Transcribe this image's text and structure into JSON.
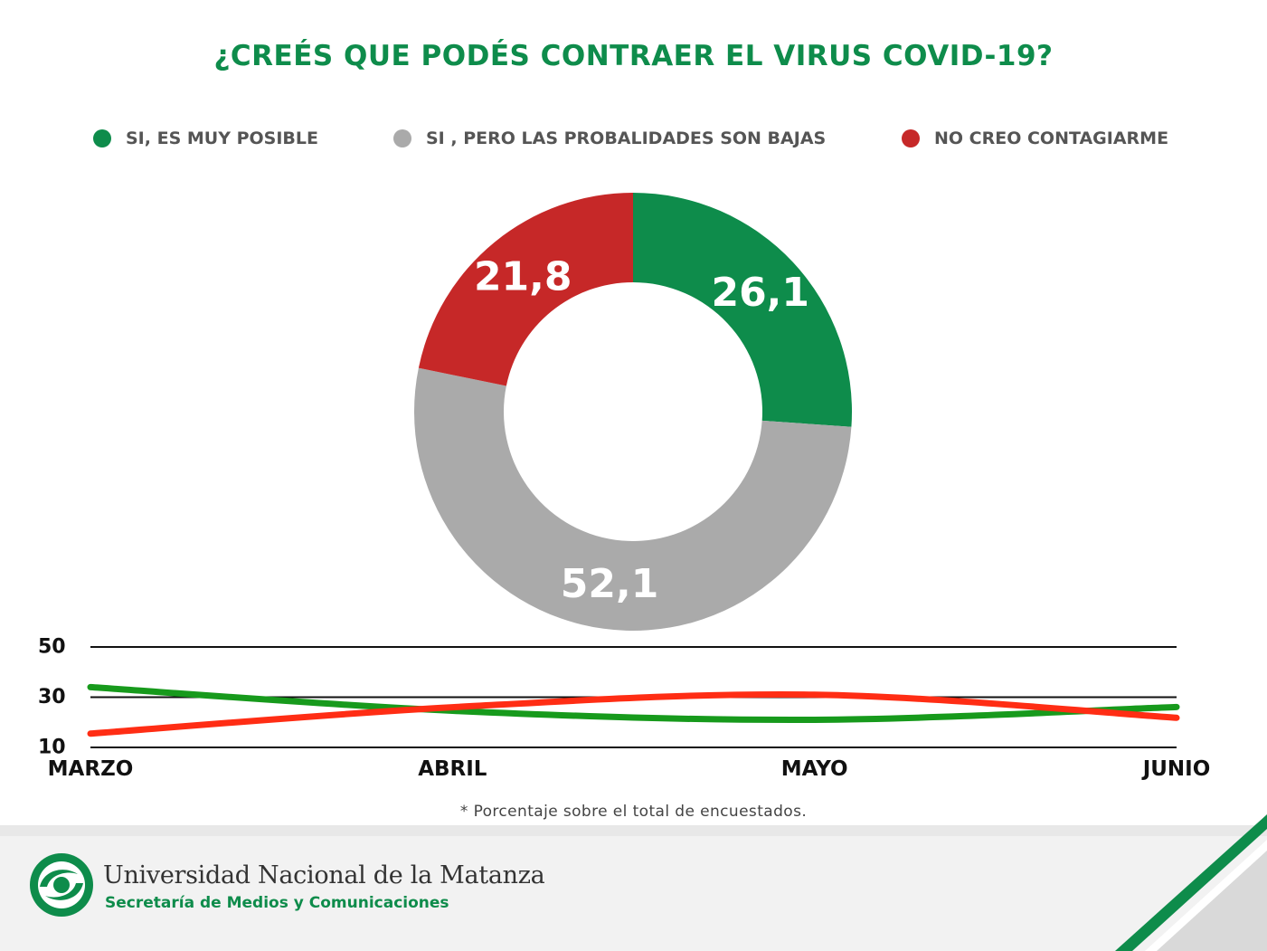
{
  "title": "¿CREÉS QUE PODÉS CONTRAER EL VIRUS COVID-19?",
  "colors": {
    "green": "#0e8c4b",
    "gray": "#aaaaaa",
    "red": "#c62828",
    "trend_green": "#179a1c",
    "trend_red": "#ff2d14"
  },
  "footnote": "* Porcentaje sobre el total de encuestados.",
  "footer": {
    "university": "Universidad Nacional de la Matanza",
    "secretariat": "Secretaría de Medios y Comunicaciones",
    "logo_icon": "unlam-logo-icon"
  },
  "chart_data": [
    {
      "type": "pie",
      "subtype": "donut",
      "title": "¿CREÉS QUE PODÉS CONTRAER EL VIRUS COVID-19?",
      "legend_placement": "top",
      "slices": [
        {
          "name": "SI, ES MUY POSIBLE",
          "value": 26.1,
          "label": "26,1",
          "color": "#0e8c4b"
        },
        {
          "name": "SI , PERO LAS PROBALIDADES SON BAJAS",
          "value": 52.1,
          "label": "52,1",
          "color": "#aaaaaa"
        },
        {
          "name": "NO CREO CONTAGIARME",
          "value": 21.8,
          "label": "21,8",
          "color": "#c62828"
        }
      ]
    },
    {
      "type": "line",
      "categories": [
        "MARZO",
        "ABRIL",
        "MAYO",
        "JUNIO"
      ],
      "y_ticks": [
        "50",
        "30",
        "10"
      ],
      "ylim": [
        10,
        50
      ],
      "grid": true,
      "series": [
        {
          "values": [
            34,
            24.6,
            21,
            26.1
          ],
          "color": "#179a1c"
        },
        {
          "values": [
            15.5,
            26,
            31,
            21.8
          ],
          "color": "#ff2d14"
        }
      ]
    }
  ]
}
